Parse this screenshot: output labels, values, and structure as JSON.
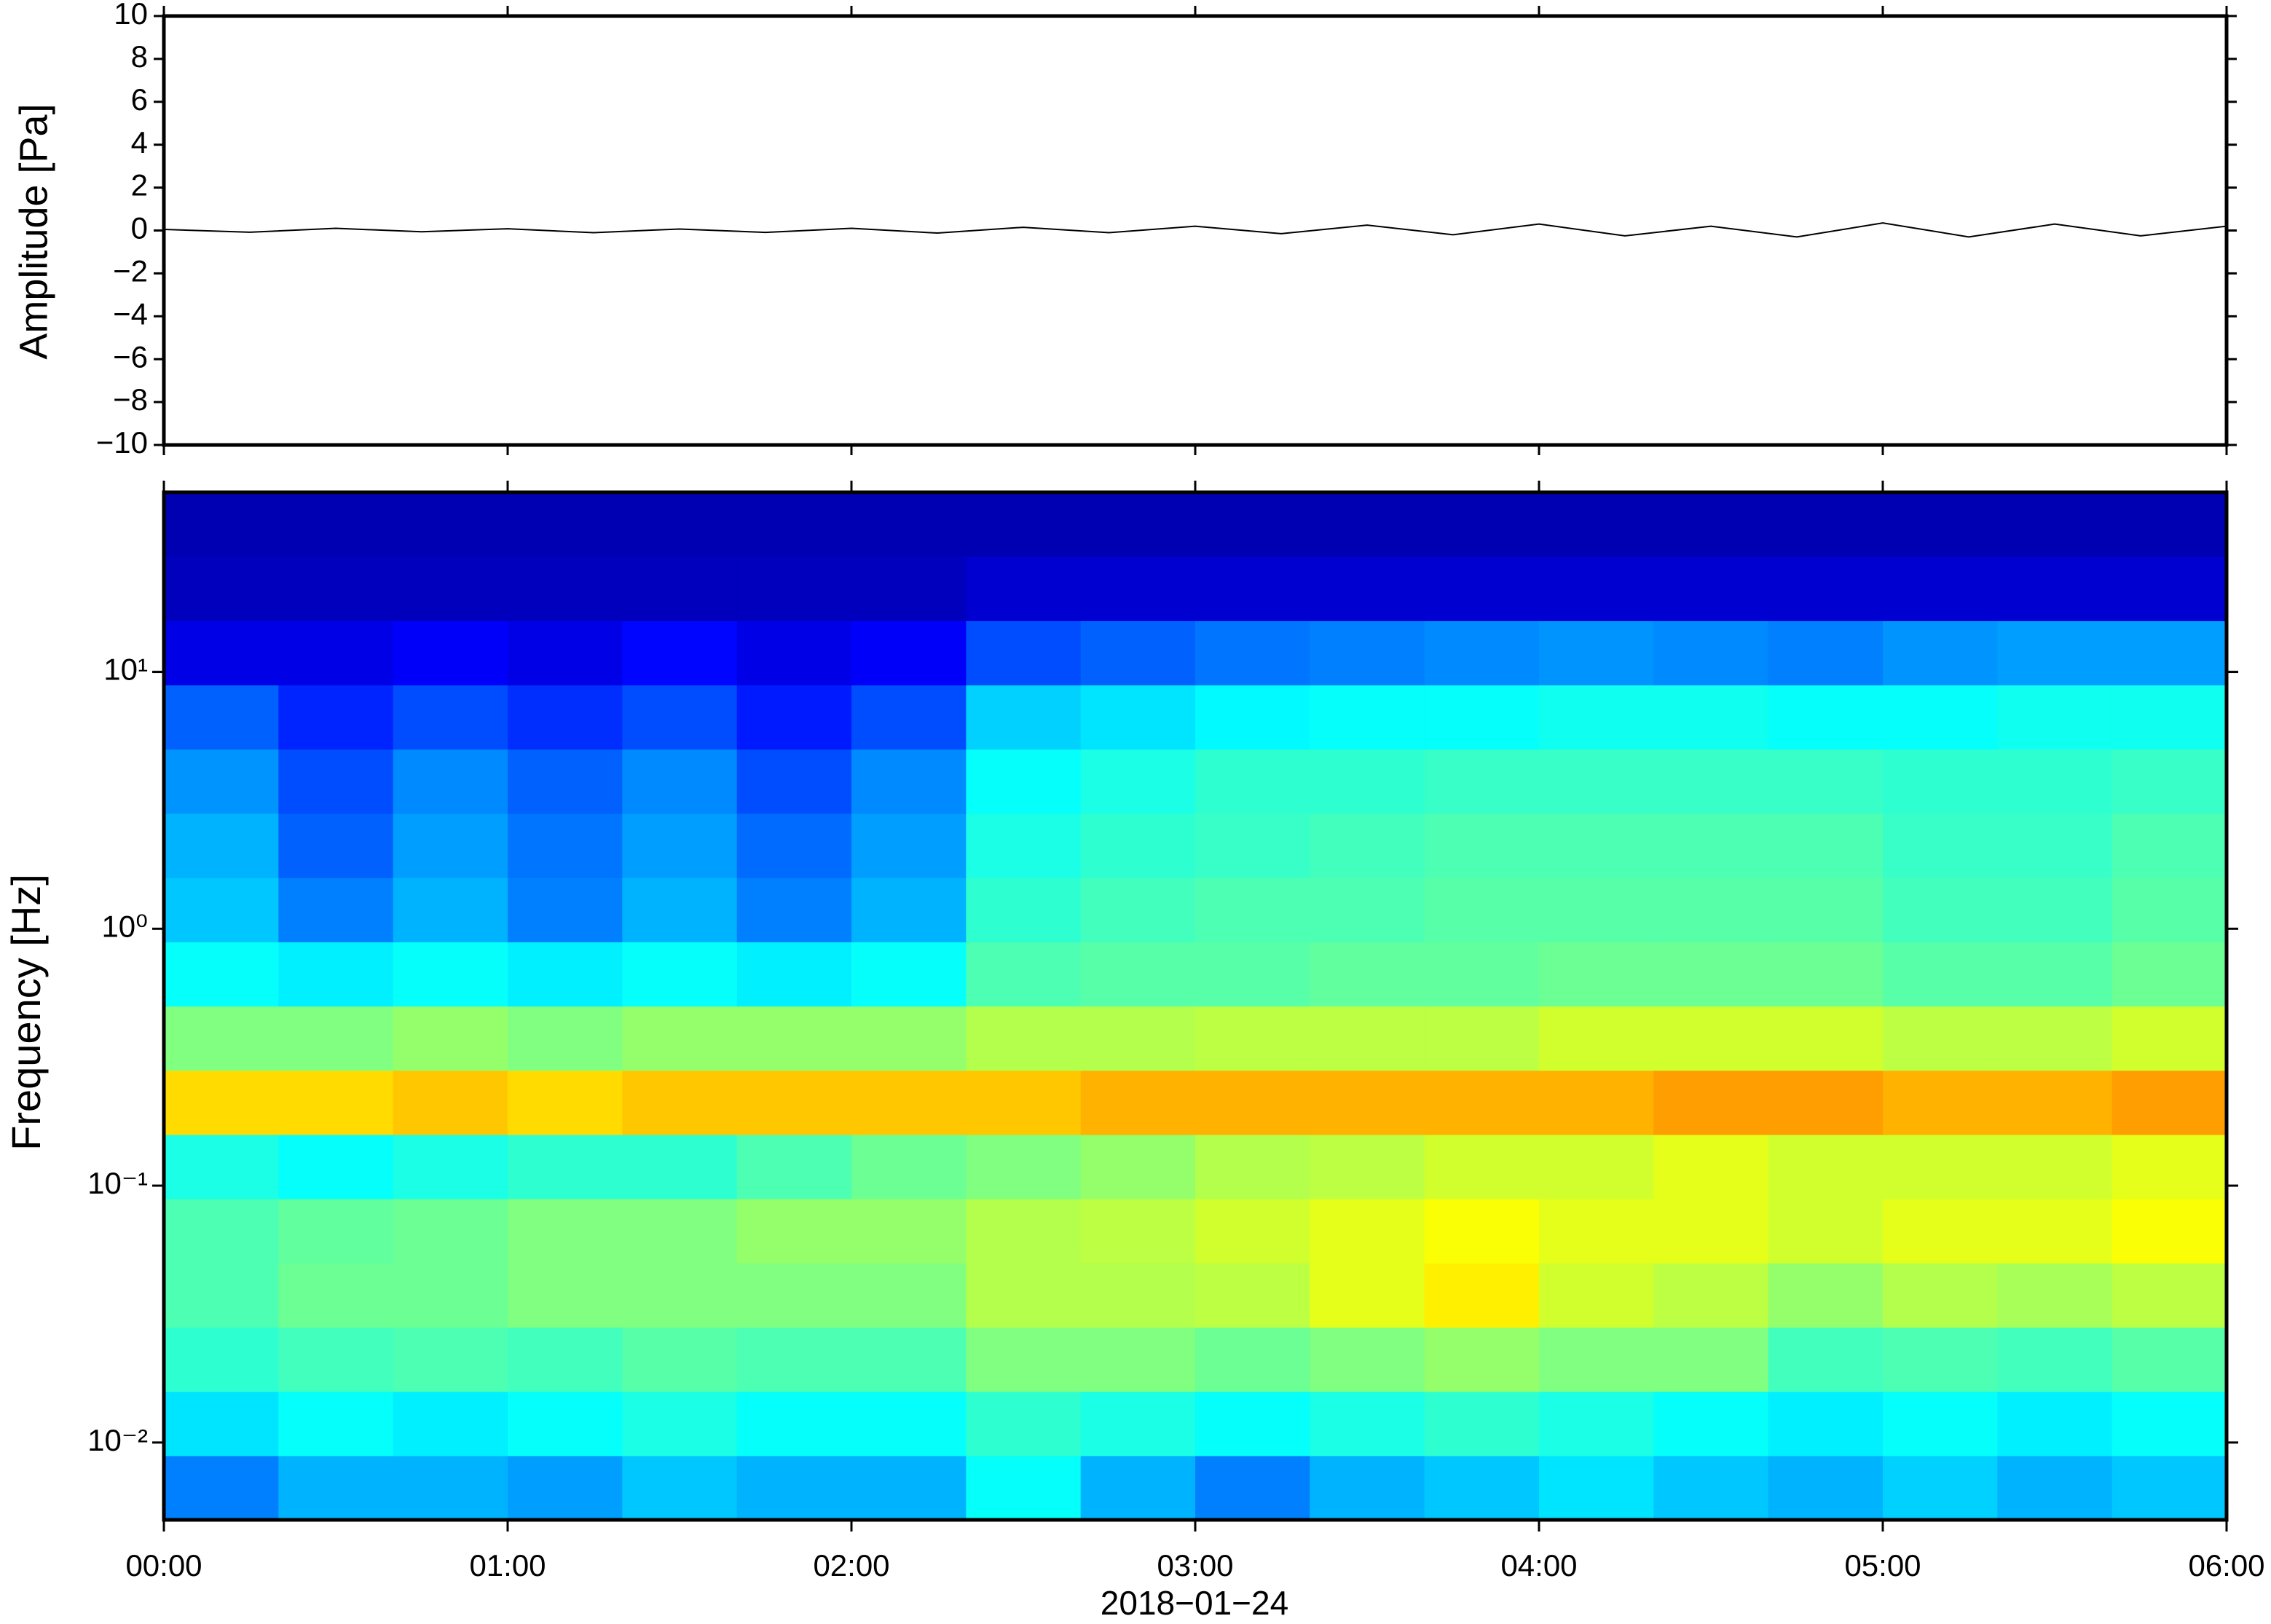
{
  "chart_data": [
    {
      "type": "line",
      "ylabel": "Amplitude [Pa]",
      "x": [
        0,
        0.25,
        0.5,
        0.75,
        1,
        1.25,
        1.5,
        1.75,
        2,
        2.25,
        2.5,
        2.75,
        3,
        3.25,
        3.5,
        3.75,
        4,
        4.25,
        4.5,
        4.75,
        5,
        5.25,
        5.5,
        5.75,
        6
      ],
      "series": [
        {
          "color": "#000000",
          "values": [
            0.05,
            -0.08,
            0.1,
            -0.06,
            0.08,
            -0.1,
            0.07,
            -0.09,
            0.1,
            -0.12,
            0.15,
            -0.1,
            0.2,
            -0.15,
            0.25,
            -0.2,
            0.3,
            -0.25,
            0.2,
            -0.3,
            0.35,
            -0.3,
            0.3,
            -0.25,
            0.2
          ]
        }
      ],
      "xlim": [
        0,
        6
      ],
      "ylim": [
        -10,
        10
      ],
      "yticks": [
        {
          "value": -10,
          "label": "−10"
        },
        {
          "value": -8,
          "label": "−8"
        },
        {
          "value": -6,
          "label": "−6"
        },
        {
          "value": -4,
          "label": "−4"
        },
        {
          "value": -2,
          "label": "−2"
        },
        0,
        2,
        4,
        6,
        8,
        10
      ]
    },
    {
      "type": "heatmap",
      "ylabel": "Frequency [Hz]",
      "xlabel": "2018−01−24",
      "colormap": "jet",
      "ylog": true,
      "xlim": [
        0,
        6
      ],
      "ylim": [
        0.005,
        50
      ],
      "xticks": [
        {
          "value": 0,
          "label": "00:00"
        },
        {
          "value": 1,
          "label": "01:00"
        },
        {
          "value": 2,
          "label": "02:00"
        },
        {
          "value": 3,
          "label": "03:00"
        },
        {
          "value": 4,
          "label": "04:00"
        },
        {
          "value": 5,
          "label": "05:00"
        },
        {
          "value": 6,
          "label": "06:00"
        }
      ],
      "yticks": [
        {
          "value": 0.01,
          "label": "10⁻²"
        },
        {
          "value": 0.1,
          "label": "10⁻¹"
        },
        {
          "value": 1,
          "label": "10⁰"
        },
        {
          "value": 10,
          "label": "10¹"
        }
      ],
      "values": [
        [
          0.25,
          0.3,
          0.3,
          0.28,
          0.32,
          0.3,
          0.3,
          0.38,
          0.3,
          0.25,
          0.3,
          0.32,
          0.35,
          0.32,
          0.3,
          0.33,
          0.3,
          0.32
        ],
        [
          0.35,
          0.38,
          0.36,
          0.38,
          0.4,
          0.38,
          0.38,
          0.42,
          0.4,
          0.38,
          0.4,
          0.42,
          0.4,
          0.38,
          0.36,
          0.38,
          0.36,
          0.38
        ],
        [
          0.42,
          0.44,
          0.45,
          0.44,
          0.46,
          0.45,
          0.45,
          0.5,
          0.5,
          0.48,
          0.5,
          0.52,
          0.5,
          0.5,
          0.44,
          0.45,
          0.44,
          0.46
        ],
        [
          0.45,
          0.48,
          0.48,
          0.5,
          0.5,
          0.5,
          0.5,
          0.55,
          0.55,
          0.56,
          0.6,
          0.64,
          0.58,
          0.56,
          0.52,
          0.55,
          0.54,
          0.56
        ],
        [
          0.45,
          0.47,
          0.48,
          0.5,
          0.5,
          0.52,
          0.52,
          0.55,
          0.56,
          0.58,
          0.6,
          0.62,
          0.6,
          0.6,
          0.58,
          0.6,
          0.6,
          0.62
        ],
        [
          0.4,
          0.38,
          0.4,
          0.42,
          0.42,
          0.45,
          0.48,
          0.5,
          0.52,
          0.55,
          0.56,
          0.58,
          0.58,
          0.6,
          0.58,
          0.58,
          0.58,
          0.6
        ],
        [
          0.66,
          0.66,
          0.68,
          0.66,
          0.68,
          0.68,
          0.68,
          0.68,
          0.7,
          0.7,
          0.7,
          0.7,
          0.7,
          0.72,
          0.72,
          0.7,
          0.7,
          0.72
        ],
        [
          0.5,
          0.5,
          0.52,
          0.5,
          0.52,
          0.52,
          0.52,
          0.55,
          0.55,
          0.56,
          0.56,
          0.56,
          0.58,
          0.58,
          0.58,
          0.56,
          0.56,
          0.58
        ],
        [
          0.38,
          0.36,
          0.38,
          0.36,
          0.38,
          0.36,
          0.38,
          0.45,
          0.46,
          0.46,
          0.47,
          0.47,
          0.48,
          0.48,
          0.48,
          0.46,
          0.46,
          0.48
        ],
        [
          0.32,
          0.25,
          0.3,
          0.25,
          0.3,
          0.25,
          0.3,
          0.42,
          0.44,
          0.45,
          0.45,
          0.46,
          0.46,
          0.46,
          0.46,
          0.44,
          0.44,
          0.46
        ],
        [
          0.3,
          0.22,
          0.28,
          0.24,
          0.28,
          0.23,
          0.28,
          0.4,
          0.42,
          0.43,
          0.44,
          0.45,
          0.45,
          0.45,
          0.45,
          0.43,
          0.43,
          0.45
        ],
        [
          0.27,
          0.2,
          0.26,
          0.22,
          0.26,
          0.2,
          0.26,
          0.38,
          0.4,
          0.42,
          0.42,
          0.43,
          0.43,
          0.43,
          0.43,
          0.42,
          0.42,
          0.43
        ],
        [
          0.22,
          0.16,
          0.2,
          0.17,
          0.2,
          0.15,
          0.2,
          0.33,
          0.35,
          0.37,
          0.38,
          0.38,
          0.39,
          0.39,
          0.38,
          0.38,
          0.39,
          0.39
        ],
        [
          0.1,
          0.1,
          0.12,
          0.1,
          0.13,
          0.1,
          0.12,
          0.2,
          0.22,
          0.24,
          0.25,
          0.26,
          0.27,
          0.26,
          0.25,
          0.27,
          0.28,
          0.28
        ],
        [
          0.06,
          0.06,
          0.06,
          0.06,
          0.06,
          0.06,
          0.06,
          0.08,
          0.08,
          0.08,
          0.08,
          0.08,
          0.08,
          0.08,
          0.08,
          0.08,
          0.08,
          0.08
        ],
        [
          0.05,
          0.05,
          0.05,
          0.05,
          0.05,
          0.05,
          0.05,
          0.05,
          0.05,
          0.05,
          0.05,
          0.05,
          0.05,
          0.05,
          0.05,
          0.05,
          0.05,
          0.05
        ]
      ]
    }
  ]
}
